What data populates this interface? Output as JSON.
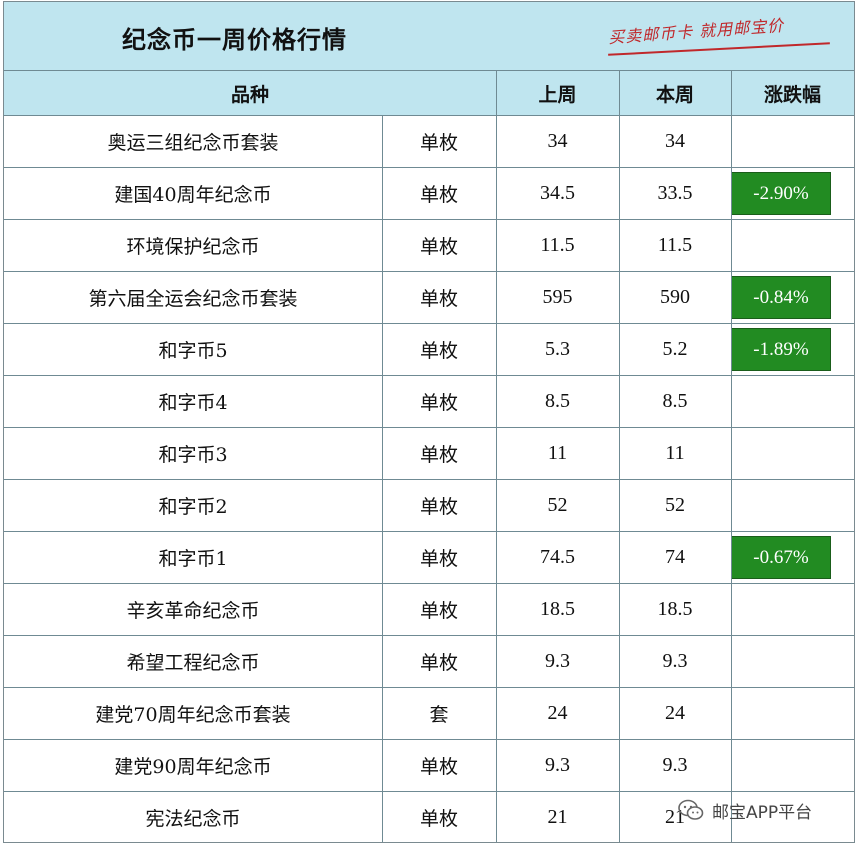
{
  "title": "纪念币一周价格行情",
  "slogan": "买卖邮币卡 就用邮宝价",
  "headers": {
    "variety": "品种",
    "last_week": "上周",
    "this_week": "本周",
    "change": "涨跌幅"
  },
  "rows": [
    {
      "name": "奥运三组纪念币套装",
      "unit": "单枚",
      "last": "34",
      "this": "34",
      "change": ""
    },
    {
      "name": "建国40周年纪念币",
      "unit": "单枚",
      "last": "34.5",
      "this": "33.5",
      "change": "-2.90%"
    },
    {
      "name": "环境保护纪念币",
      "unit": "单枚",
      "last": "11.5",
      "this": "11.5",
      "change": ""
    },
    {
      "name": "第六届全运会纪念币套装",
      "unit": "单枚",
      "last": "595",
      "this": "590",
      "change": "-0.84%"
    },
    {
      "name": "和字币5",
      "unit": "单枚",
      "last": "5.3",
      "this": "5.2",
      "change": "-1.89%"
    },
    {
      "name": "和字币4",
      "unit": "单枚",
      "last": "8.5",
      "this": "8.5",
      "change": ""
    },
    {
      "name": "和字币3",
      "unit": "单枚",
      "last": "11",
      "this": "11",
      "change": ""
    },
    {
      "name": "和字币2",
      "unit": "单枚",
      "last": "52",
      "this": "52",
      "change": ""
    },
    {
      "name": "和字币1",
      "unit": "单枚",
      "last": "74.5",
      "this": "74",
      "change": "-0.67%"
    },
    {
      "name": "辛亥革命纪念币",
      "unit": "单枚",
      "last": "18.5",
      "this": "18.5",
      "change": ""
    },
    {
      "name": "希望工程纪念币",
      "unit": "单枚",
      "last": "9.3",
      "this": "9.3",
      "change": ""
    },
    {
      "name": "建党70周年纪念币套装",
      "unit": "套",
      "last": "24",
      "this": "24",
      "change": ""
    },
    {
      "name": "建党90周年纪念币",
      "unit": "单枚",
      "last": "9.3",
      "this": "9.3",
      "change": ""
    },
    {
      "name": "宪法纪念币",
      "unit": "单枚",
      "last": "21",
      "this": "21",
      "change": ""
    }
  ],
  "colors": {
    "header_bg": "#bfe5ef",
    "decline_bg": "#228b22",
    "slogan": "#c0282b"
  },
  "watermark": {
    "icon": "wechat-icon",
    "text": "邮宝APP平台"
  }
}
